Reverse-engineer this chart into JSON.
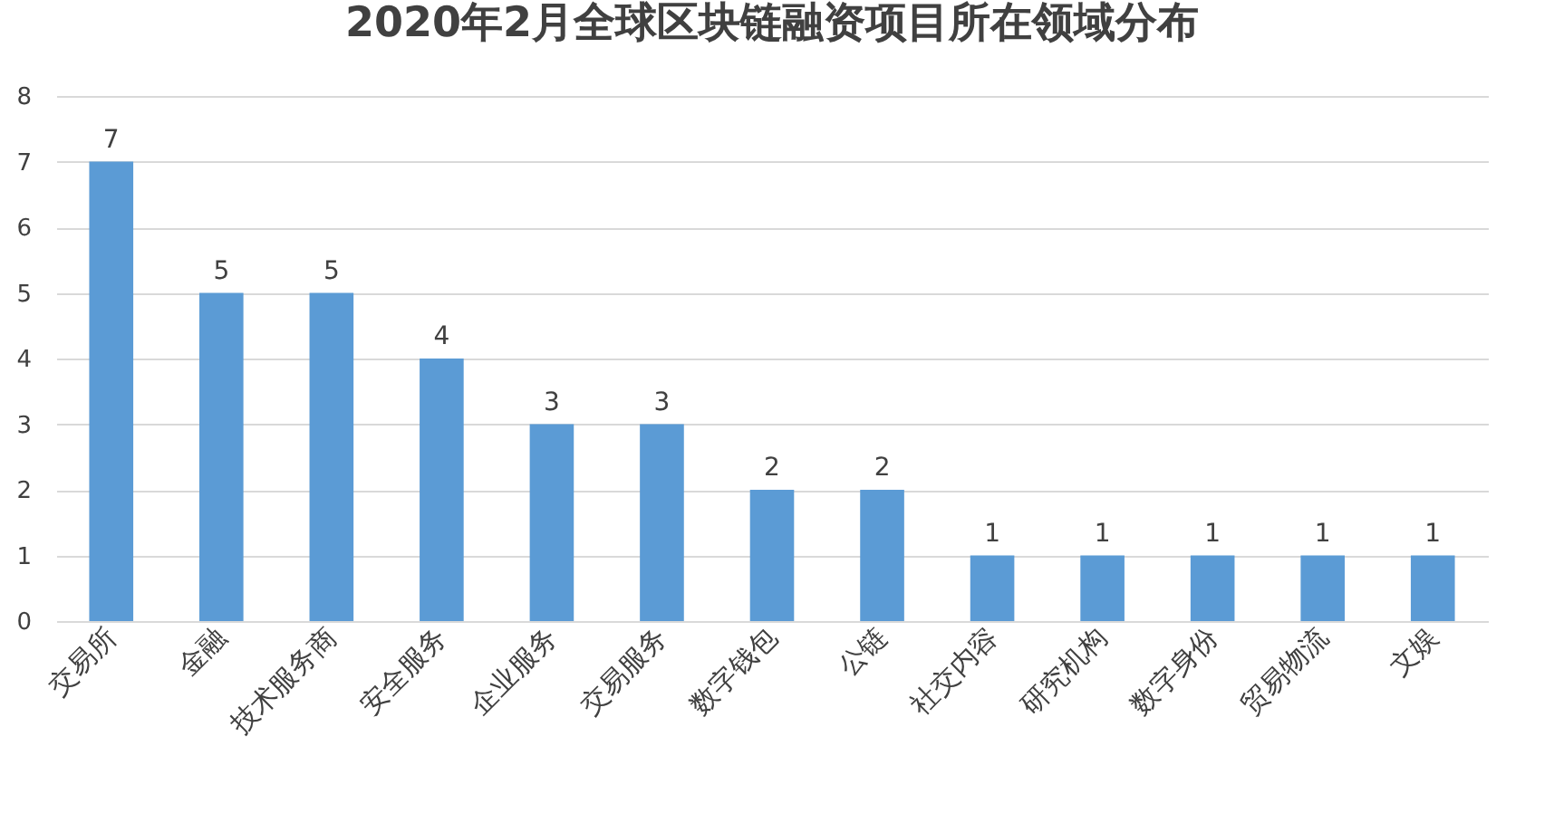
{
  "chart_data": {
    "type": "bar",
    "title": "2020年2月全球区块链融资项目所在领域分布",
    "categories": [
      "交易所",
      "金融",
      "技术服务商",
      "安全服务",
      "企业服务",
      "交易服务",
      "数字钱包",
      "公链",
      "社交内容",
      "研究机构",
      "数字身份",
      "贸易物流",
      "文娱"
    ],
    "values": [
      7,
      5,
      5,
      4,
      3,
      3,
      2,
      2,
      1,
      1,
      1,
      1,
      1
    ],
    "color": "#5b9bd5",
    "ylim": [
      0,
      8
    ],
    "yticks": [
      0,
      1,
      2,
      3,
      4,
      5,
      6,
      7,
      8
    ],
    "grid": "y",
    "data_labels": true
  }
}
